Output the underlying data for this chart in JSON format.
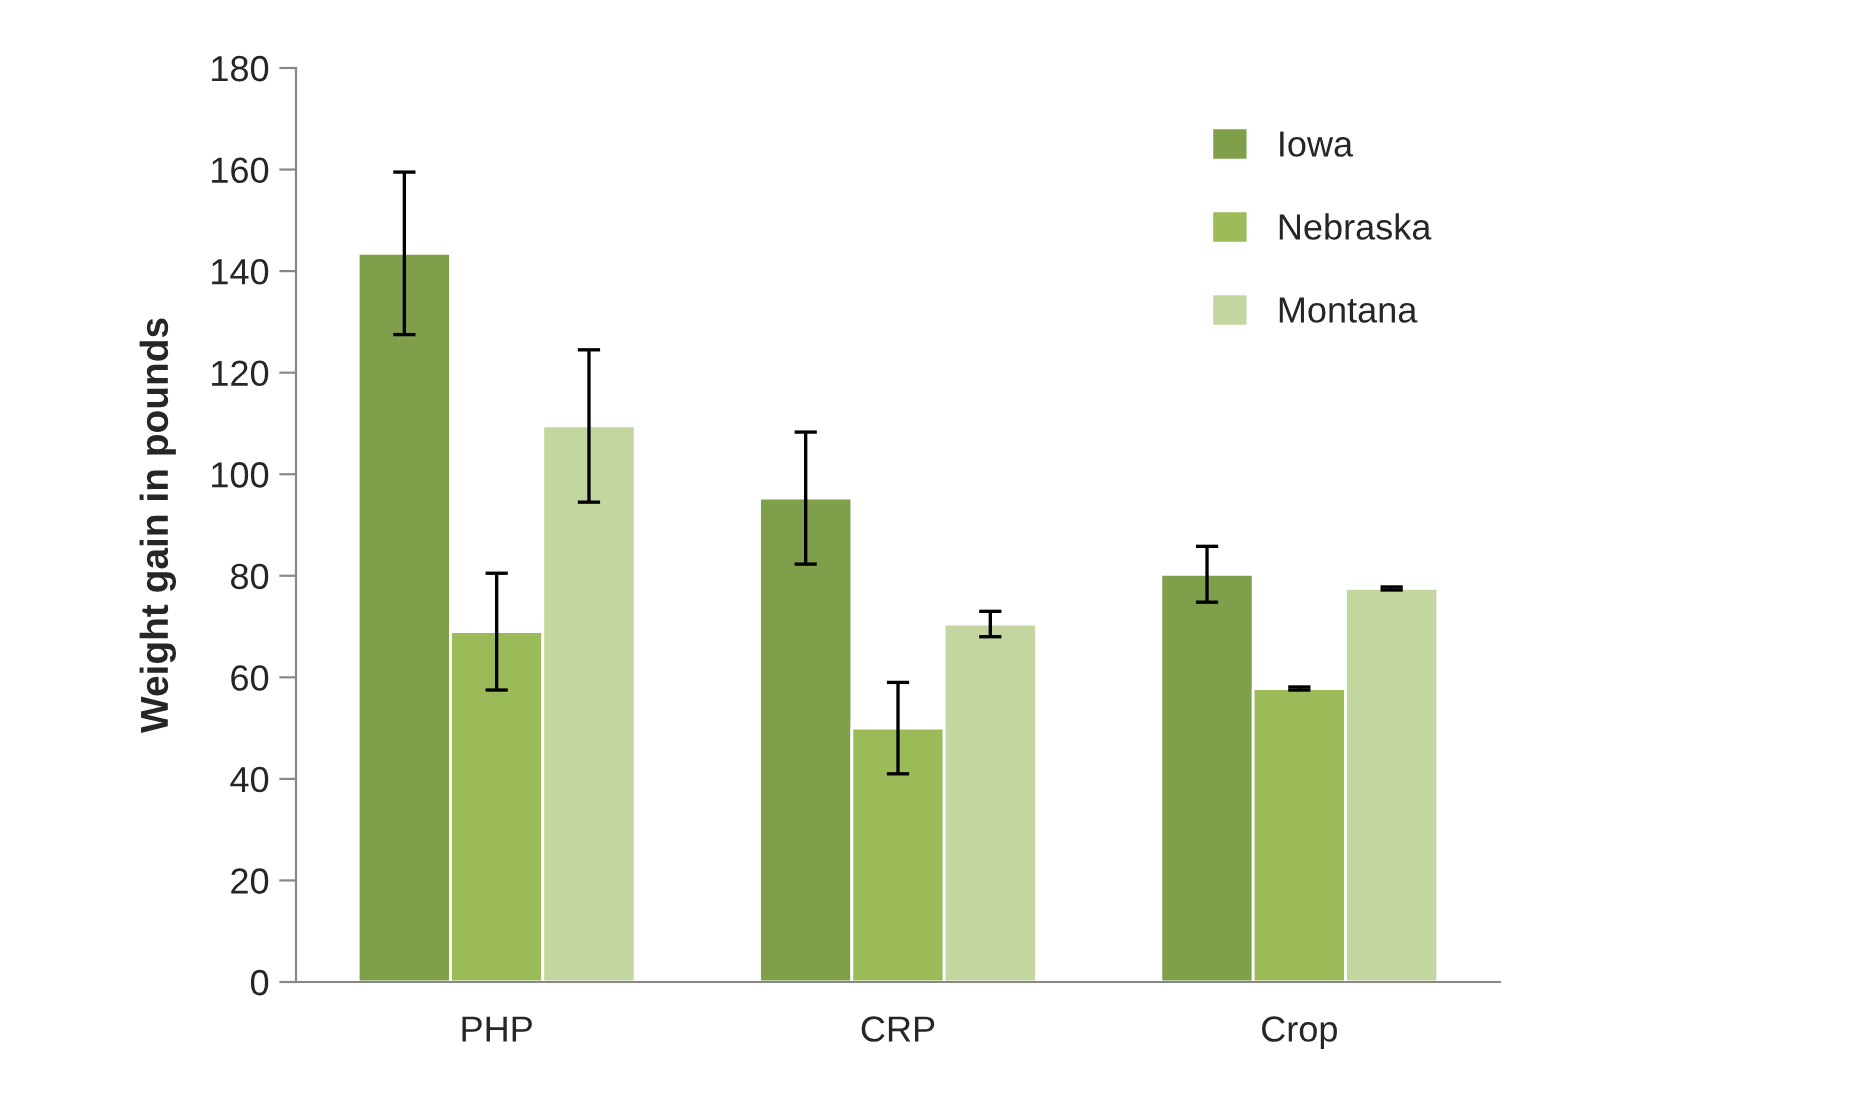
{
  "chart_data": {
    "type": "bar",
    "ylabel": "Weight gain in pounds",
    "categories": [
      "PHP",
      "CRP",
      "Crop"
    ],
    "series": [
      {
        "name": "Iowa",
        "color": "#7f9f4b",
        "values": [
          143.5,
          95.3,
          80.3
        ],
        "errors": [
          16,
          13,
          5.5
        ]
      },
      {
        "name": "Nebraska",
        "color": "#9bbb59",
        "values": [
          69,
          50,
          57.8
        ],
        "errors": [
          11.5,
          9,
          0.3
        ]
      },
      {
        "name": "Montana",
        "color": "#c4d6a0",
        "values": [
          109.5,
          70.5,
          77.5
        ],
        "errors": [
          15,
          2.5,
          0.3
        ]
      }
    ],
    "ylim": [
      0,
      180
    ],
    "yticks": [
      0,
      20,
      40,
      60,
      80,
      100,
      120,
      140,
      160,
      180
    ],
    "grid": false,
    "legend": "top right"
  }
}
